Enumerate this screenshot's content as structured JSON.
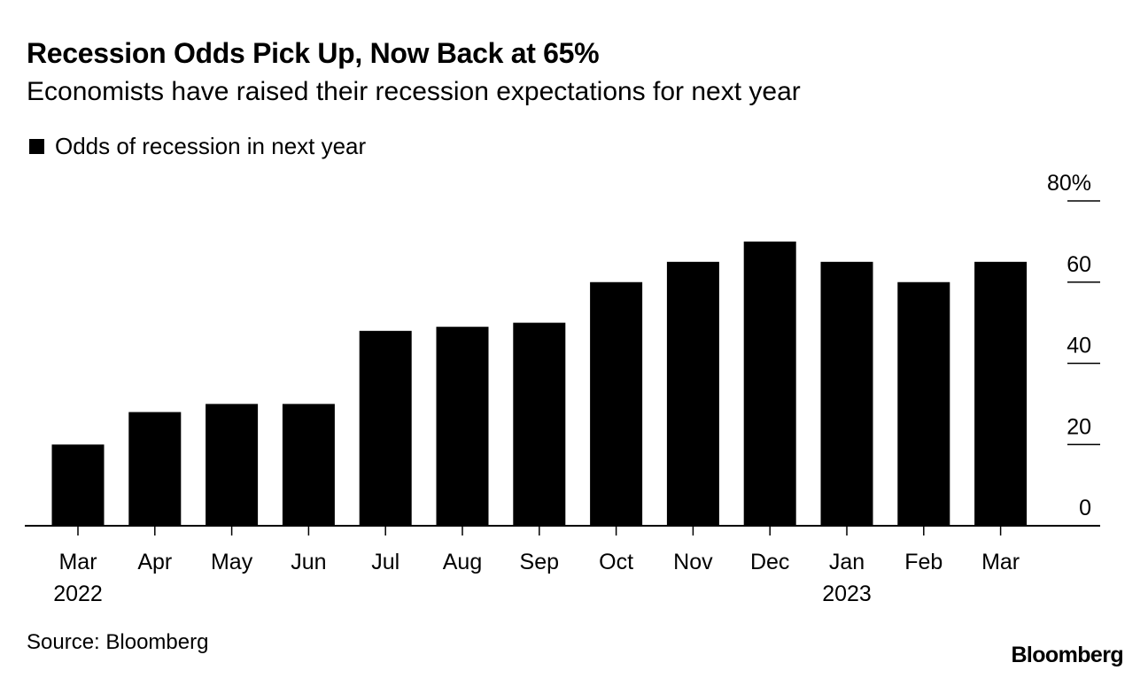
{
  "header": {
    "title": "Recession Odds Pick Up, Now Back at 65%",
    "subtitle": "Economists have raised their recession expectations for next year"
  },
  "legend": {
    "label": "Odds of recession in next year",
    "color": "#000000"
  },
  "footer": {
    "source": "Source: Bloomberg",
    "brand": "Bloomberg"
  },
  "chart_data": {
    "type": "bar",
    "title": "Recession Odds Pick Up, Now Back at 65%",
    "subtitle": "Economists have raised their recession expectations for next year",
    "categories": [
      "Mar",
      "Apr",
      "May",
      "Jun",
      "Jul",
      "Aug",
      "Sep",
      "Oct",
      "Nov",
      "Dec",
      "Jan",
      "Feb",
      "Mar"
    ],
    "year_labels": [
      "2022",
      "",
      "",
      "",
      "",
      "",
      "",
      "",
      "",
      "",
      "2023",
      "",
      ""
    ],
    "series": [
      {
        "name": "Odds of recession in next year",
        "values": [
          20,
          28,
          30,
          30,
          48,
          49,
          50,
          60,
          65,
          70,
          65,
          60,
          65
        ]
      }
    ],
    "yticks": [
      "0",
      "20",
      "40",
      "60",
      "80%"
    ],
    "ytick_values": [
      0,
      20,
      40,
      60,
      80
    ],
    "ylim": [
      0,
      80
    ],
    "xlabel": "",
    "ylabel": "",
    "legend_position": "top-left",
    "axis_side": "right",
    "bar_color": "#000000"
  }
}
